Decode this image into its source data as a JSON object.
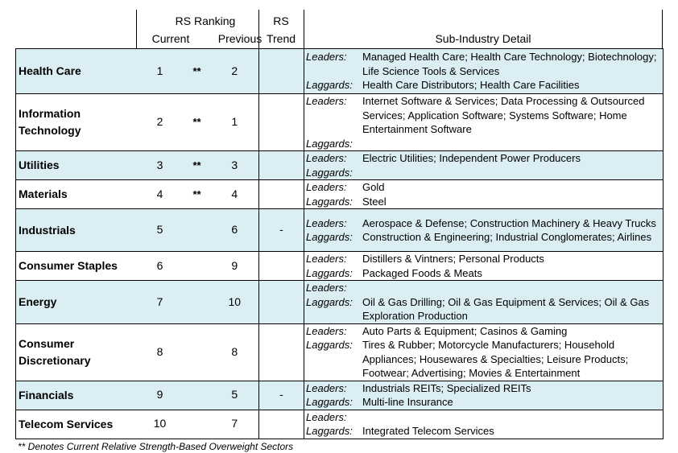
{
  "header": {
    "rs_ranking": "RS Ranking",
    "current": "Current",
    "previous": "Previous",
    "rs": "RS",
    "trend": "Trend",
    "sub_industry": "Sub-Industry Detail"
  },
  "labels": {
    "leaders": "Leaders:",
    "laggards": "Laggards:"
  },
  "rows": [
    {
      "sector": "Health Care",
      "current": "1",
      "stars": "**",
      "previous": "2",
      "trend": "",
      "shaded": true,
      "leaders": [
        "Managed Health Care; Health Care Technology; Biotechnology;",
        "Life Science Tools & Services"
      ],
      "laggards": [
        "Health Care Distributors; Health Care Facilities"
      ]
    },
    {
      "sector": "Information Technology",
      "current": "2",
      "stars": "**",
      "previous": "1",
      "trend": "",
      "shaded": false,
      "leaders": [
        "Internet Software & Services; Data Processing & Outsourced",
        "Services; Application Software; Systems Software; Home",
        "Entertainment Software"
      ],
      "laggards": [
        ""
      ]
    },
    {
      "sector": "Utilities",
      "current": "3",
      "stars": "**",
      "previous": "3",
      "trend": "",
      "shaded": true,
      "leaders": [
        "Electric Utilities; Independent Power Producers"
      ],
      "laggards": [
        ""
      ]
    },
    {
      "sector": "Materials",
      "current": "4",
      "stars": "**",
      "previous": "4",
      "trend": "",
      "shaded": false,
      "leaders": [
        "Gold"
      ],
      "laggards": [
        "Steel"
      ]
    },
    {
      "sector": "Industrials",
      "current": "5",
      "stars": "",
      "previous": "6",
      "trend": "-",
      "shaded": true,
      "leaders": [
        "Aerospace & Defense; Construction Machinery & Heavy Trucks"
      ],
      "laggards": [
        "Construction & Engineering; Industrial Conglomerates; Airlines"
      ]
    },
    {
      "sector": "Consumer Staples",
      "current": "6",
      "stars": "",
      "previous": "9",
      "trend": "",
      "shaded": false,
      "leaders": [
        "Distillers & Vintners; Personal Products"
      ],
      "laggards": [
        "Packaged Foods & Meats"
      ]
    },
    {
      "sector": "Energy",
      "current": "7",
      "stars": "",
      "previous": "10",
      "trend": "",
      "shaded": true,
      "leaders": [
        ""
      ],
      "laggards": [
        "Oil & Gas Drilling; Oil & Gas Equipment & Services; Oil & Gas",
        "Exploration Production"
      ]
    },
    {
      "sector": "Consumer Discretionary",
      "current": "8",
      "stars": "",
      "previous": "8",
      "trend": "",
      "shaded": false,
      "leaders": [
        "Auto Parts & Equipment; Casinos & Gaming"
      ],
      "laggards": [
        "Tires & Rubber; Motorcycle Manufacturers; Household",
        "Appliances; Housewares & Specialties; Leisure Products;",
        "Footwear; Advertising; Movies & Entertainment"
      ]
    },
    {
      "sector": "Financials",
      "current": "9",
      "stars": "",
      "previous": "5",
      "trend": "-",
      "shaded": true,
      "leaders": [
        "Industrials REITs; Specialized REITs"
      ],
      "laggards": [
        "Multi-line Insurance"
      ]
    },
    {
      "sector": "Telecom Services",
      "current": "10",
      "stars": "",
      "previous": "7",
      "trend": "",
      "shaded": false,
      "leaders": [
        ""
      ],
      "laggards": [
        "Integrated Telecom Services"
      ]
    }
  ],
  "footnote": "** Denotes Current Relative Strength-Based Overweight Sectors"
}
